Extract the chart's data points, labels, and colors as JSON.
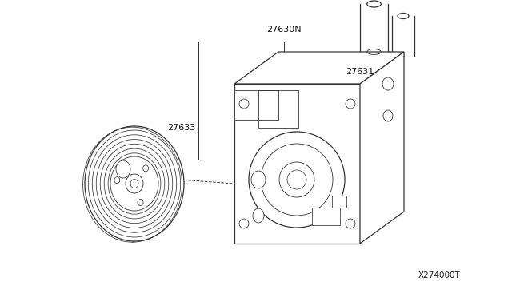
{
  "background_color": "#ffffff",
  "line_color": "#333333",
  "label_27630N": "27630N",
  "label_27631": "27631",
  "label_27633": "27633",
  "label_diagram_id": "X274000T",
  "figsize": [
    6.4,
    3.72
  ],
  "dpi": 100
}
